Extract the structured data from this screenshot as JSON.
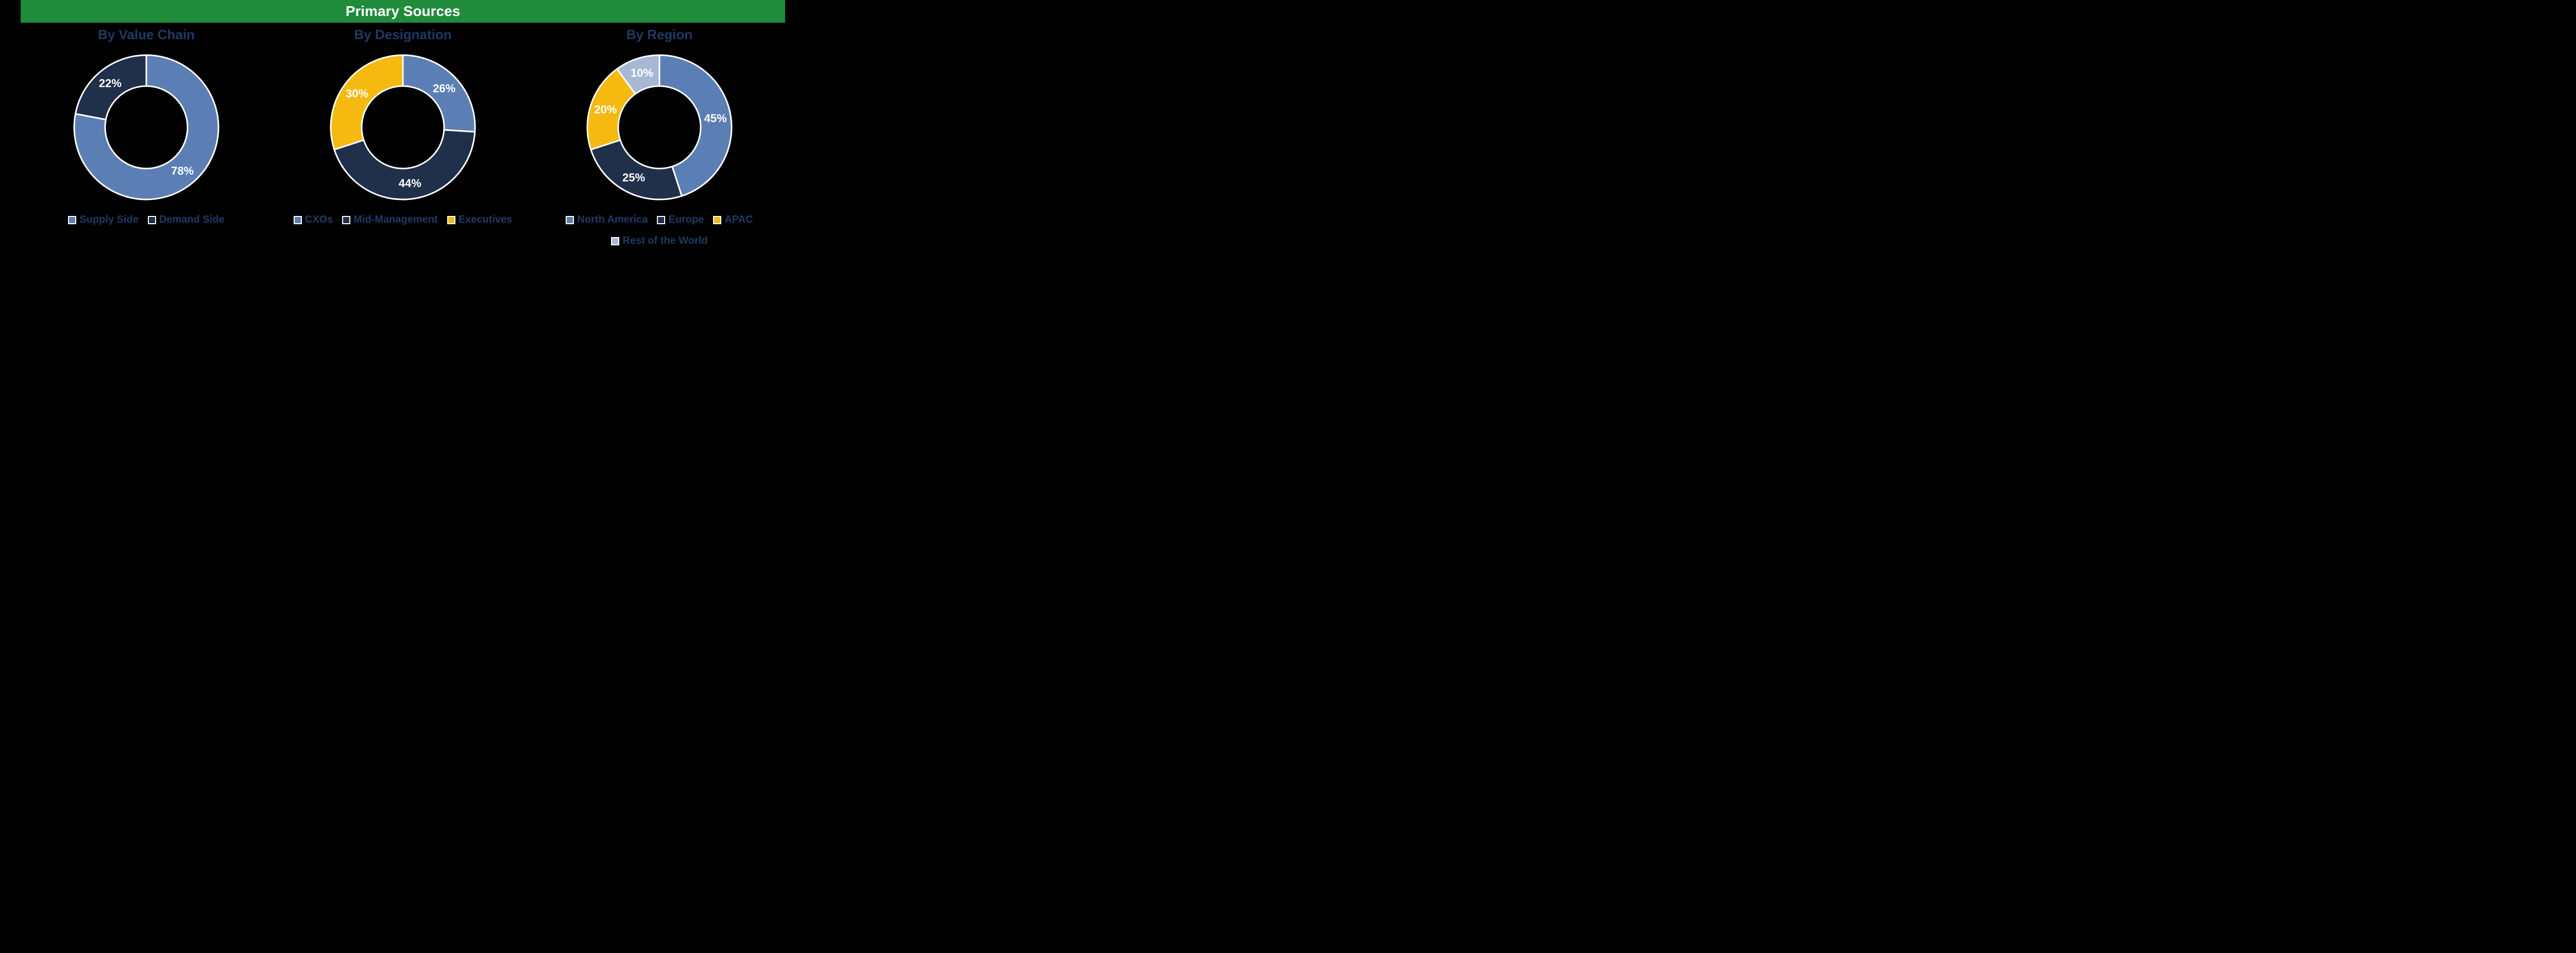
{
  "header": {
    "title": "Primary Sources"
  },
  "layout": {
    "donut": {
      "outer_r": 140,
      "inner_r": 80,
      "stroke": "#ffffff",
      "stroke_width": 3
    },
    "start_angle_deg": -90,
    "panel_title_color": "#1f3a63",
    "panel_title_fontsize": 26,
    "label_fontsize": 22,
    "label_color": "#ffffff",
    "legend_fontsize": 20,
    "legend_color": "#1f3a63",
    "header_bg": "#1f8b3b",
    "header_color": "#ffffff",
    "header_fontsize": 28,
    "background_color": "#000000"
  },
  "charts": [
    {
      "title": "By Value Chain",
      "type": "donut",
      "slices": [
        {
          "label": "Supply Side",
          "value": 78,
          "color": "#5b7fb5"
        },
        {
          "label": "Demand Side",
          "value": 22,
          "color": "#20304a"
        }
      ]
    },
    {
      "title": "By Designation",
      "type": "donut",
      "slices": [
        {
          "label": "CXOs",
          "value": 26,
          "color": "#5b7fb5"
        },
        {
          "label": "Mid-Management",
          "value": 44,
          "color": "#20304a"
        },
        {
          "label": "Executives",
          "value": 30,
          "color": "#f5b90f"
        }
      ]
    },
    {
      "title": "By Region",
      "type": "donut",
      "slices": [
        {
          "label": "North America",
          "value": 45,
          "color": "#5b7fb5"
        },
        {
          "label": "Europe",
          "value": 25,
          "color": "#20304a"
        },
        {
          "label": "APAC",
          "value": 20,
          "color": "#f5b90f"
        },
        {
          "label": "Rest of the World",
          "value": 10,
          "color": "#a7b8d4"
        }
      ]
    }
  ]
}
